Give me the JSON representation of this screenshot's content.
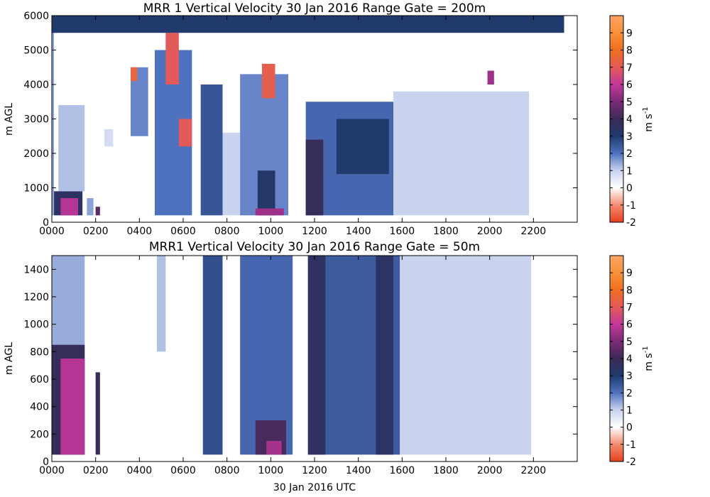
{
  "chart_data": [
    {
      "type": "heatmap",
      "title": "MRR 1 Vertical Velocity 30 Jan 2016 Range Gate = 200m",
      "xlabel": "",
      "ylabel": "m AGL",
      "x_unit": "UTC hour",
      "xlim": [
        0,
        24
      ],
      "xticks": [
        0,
        2,
        4,
        6,
        8,
        10,
        12,
        14,
        16,
        18,
        20,
        22
      ],
      "xtick_labels": [
        "0000",
        "0200",
        "0400",
        "0600",
        "0800",
        "1000",
        "1200",
        "1400",
        "1600",
        "1800",
        "2000",
        "2200"
      ],
      "ylim": [
        0,
        6000
      ],
      "yticks": [
        0,
        1000,
        2000,
        3000,
        4000,
        5000,
        6000
      ],
      "colorbar": {
        "label": "m s",
        "label_exponent": "-1",
        "range": [
          -2,
          10
        ],
        "ticks": [
          -2,
          -1,
          0,
          1,
          2,
          3,
          4,
          5,
          6,
          7,
          8,
          9
        ]
      },
      "cells": [
        {
          "x0": 0.0,
          "x1": 0.1,
          "y0": 200,
          "y1": 6000,
          "v": 1.5
        },
        {
          "x0": 0.1,
          "x1": 1.4,
          "y0": 200,
          "y1": 900,
          "v": 3.5
        },
        {
          "x0": 0.4,
          "x1": 1.2,
          "y0": 200,
          "y1": 700,
          "v": 5.8
        },
        {
          "x0": 0.3,
          "x1": 1.5,
          "y0": 900,
          "y1": 3400,
          "v": 1.2
        },
        {
          "x0": 1.6,
          "x1": 1.9,
          "y0": 200,
          "y1": 700,
          "v": 1.5
        },
        {
          "x0": 2.0,
          "x1": 2.2,
          "y0": 200,
          "y1": 450,
          "v": 4.5
        },
        {
          "x0": 2.4,
          "x1": 2.8,
          "y0": 2200,
          "y1": 2700,
          "v": 0.8
        },
        {
          "x0": 3.6,
          "x1": 4.4,
          "y0": 2500,
          "y1": 4500,
          "v": 1.8
        },
        {
          "x0": 3.6,
          "x1": 3.9,
          "y0": 4100,
          "y1": 4500,
          "v": 7.5
        },
        {
          "x0": 4.7,
          "x1": 6.4,
          "y0": 200,
          "y1": 5000,
          "v": 2.0
        },
        {
          "x0": 5.2,
          "x1": 5.8,
          "y0": 4000,
          "y1": 5500,
          "v": 7.0
        },
        {
          "x0": 5.8,
          "x1": 6.4,
          "y0": 2200,
          "y1": 3000,
          "v": 7.0
        },
        {
          "x0": 6.8,
          "x1": 7.8,
          "y0": 200,
          "y1": 4000,
          "v": 2.5
        },
        {
          "x0": 7.8,
          "x1": 8.6,
          "y0": 200,
          "y1": 2600,
          "v": 1.0
        },
        {
          "x0": 8.6,
          "x1": 10.8,
          "y0": 200,
          "y1": 4300,
          "v": 1.8
        },
        {
          "x0": 9.4,
          "x1": 10.2,
          "y0": 200,
          "y1": 1500,
          "v": 3.2
        },
        {
          "x0": 9.6,
          "x1": 10.2,
          "y0": 3600,
          "y1": 4600,
          "v": 7.2
        },
        {
          "x0": 9.3,
          "x1": 10.6,
          "y0": 200,
          "y1": 400,
          "v": 5.5
        },
        {
          "x0": 11.6,
          "x1": 15.6,
          "y0": 200,
          "y1": 3500,
          "v": 2.2
        },
        {
          "x0": 11.6,
          "x1": 12.4,
          "y0": 200,
          "y1": 2400,
          "v": 3.8
        },
        {
          "x0": 13.0,
          "x1": 15.4,
          "y0": 1400,
          "y1": 3000,
          "v": 3.0
        },
        {
          "x0": 15.6,
          "x1": 21.8,
          "y0": 200,
          "y1": 3800,
          "v": 1.0
        },
        {
          "x0": 0.0,
          "x1": 23.4,
          "y0": 5500,
          "y1": 6000,
          "v": 3.0
        },
        {
          "x0": 19.9,
          "x1": 20.2,
          "y0": 4000,
          "y1": 4400,
          "v": 5.5
        }
      ]
    },
    {
      "type": "heatmap",
      "title": "MRR1 Vertical Velocity 30 Jan 2016 Range Gate = 50m",
      "xlabel": "30 Jan 2016 UTC",
      "ylabel": "m AGL",
      "x_unit": "UTC hour",
      "xlim": [
        0,
        24
      ],
      "xticks": [
        0,
        2,
        4,
        6,
        8,
        10,
        12,
        14,
        16,
        18,
        20,
        22
      ],
      "xtick_labels": [
        "0000",
        "0200",
        "0400",
        "0600",
        "0800",
        "1000",
        "1200",
        "1400",
        "1600",
        "1800",
        "2000",
        "2200"
      ],
      "ylim": [
        0,
        1500
      ],
      "yticks": [
        0,
        200,
        400,
        600,
        800,
        1000,
        1200,
        1400
      ],
      "colorbar": {
        "label": "m s",
        "label_exponent": "-1",
        "range": [
          -2,
          10
        ],
        "ticks": [
          -2,
          -1,
          0,
          1,
          2,
          3,
          4,
          5,
          6,
          7,
          8,
          9
        ]
      },
      "cells": [
        {
          "x0": 0.0,
          "x1": 1.5,
          "y0": 50,
          "y1": 1500,
          "v": 1.4
        },
        {
          "x0": 0.0,
          "x1": 1.5,
          "y0": 50,
          "y1": 850,
          "v": 3.8
        },
        {
          "x0": 0.4,
          "x1": 1.5,
          "y0": 50,
          "y1": 750,
          "v": 5.8
        },
        {
          "x0": 2.0,
          "x1": 2.2,
          "y0": 50,
          "y1": 650,
          "v": 4.0
        },
        {
          "x0": 4.8,
          "x1": 5.2,
          "y0": 800,
          "y1": 1500,
          "v": 1.2
        },
        {
          "x0": 6.9,
          "x1": 7.8,
          "y0": 50,
          "y1": 1500,
          "v": 2.6
        },
        {
          "x0": 8.6,
          "x1": 11.0,
          "y0": 50,
          "y1": 1500,
          "v": 2.2
        },
        {
          "x0": 9.3,
          "x1": 10.7,
          "y0": 50,
          "y1": 300,
          "v": 4.2
        },
        {
          "x0": 9.8,
          "x1": 10.5,
          "y0": 50,
          "y1": 150,
          "v": 5.6
        },
        {
          "x0": 11.7,
          "x1": 15.9,
          "y0": 50,
          "y1": 1500,
          "v": 2.4
        },
        {
          "x0": 11.7,
          "x1": 12.5,
          "y0": 50,
          "y1": 1500,
          "v": 3.5
        },
        {
          "x0": 14.8,
          "x1": 15.6,
          "y0": 50,
          "y1": 1500,
          "v": 3.4
        },
        {
          "x0": 15.9,
          "x1": 21.9,
          "y0": 50,
          "y1": 1500,
          "v": 1.0
        }
      ]
    }
  ]
}
